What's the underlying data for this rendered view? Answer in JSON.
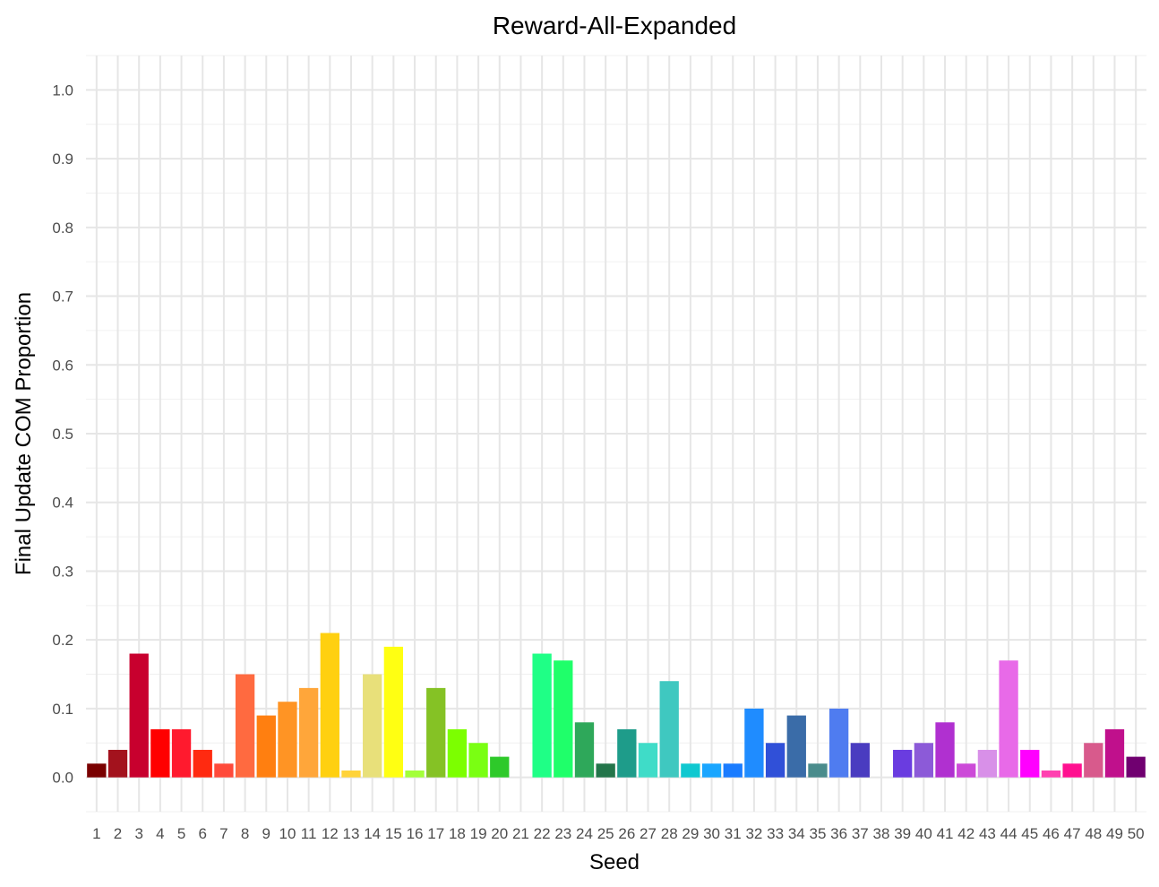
{
  "chart_data": {
    "type": "bar",
    "title": "Reward-All-Expanded",
    "xlabel": "Seed",
    "ylabel": "Final Update COM Proportion",
    "ylim": [
      -0.05,
      1.05
    ],
    "yticks": [
      "0.0",
      "0.1",
      "0.2",
      "0.3",
      "0.4",
      "0.5",
      "0.6",
      "0.7",
      "0.8",
      "0.9",
      "1.0"
    ],
    "grid": true,
    "legend": "none",
    "categories": [
      "1",
      "2",
      "3",
      "4",
      "5",
      "6",
      "7",
      "8",
      "9",
      "10",
      "11",
      "12",
      "13",
      "14",
      "15",
      "16",
      "17",
      "18",
      "19",
      "20",
      "21",
      "22",
      "23",
      "24",
      "25",
      "26",
      "27",
      "28",
      "29",
      "30",
      "31",
      "32",
      "33",
      "34",
      "35",
      "36",
      "37",
      "38",
      "39",
      "40",
      "41",
      "42",
      "43",
      "44",
      "45",
      "46",
      "47",
      "48",
      "49",
      "50"
    ],
    "values": [
      0.02,
      0.04,
      0.18,
      0.07,
      0.07,
      0.04,
      0.02,
      0.15,
      0.09,
      0.11,
      0.13,
      0.21,
      0.01,
      0.15,
      0.19,
      0.01,
      0.13,
      0.07,
      0.05,
      0.03,
      0,
      0.18,
      0.17,
      0.08,
      0.02,
      0.07,
      0.05,
      0.14,
      0.02,
      0.02,
      0.02,
      0.1,
      0.05,
      0.09,
      0.02,
      0.1,
      0.05,
      0,
      0.04,
      0.05,
      0.08,
      0.02,
      0.04,
      0.17,
      0.04,
      0.01,
      0.02,
      0.05,
      0.07,
      0.03
    ],
    "colors": [
      "#7a0000",
      "#a3121d",
      "#c8002e",
      "#ff0000",
      "#ff1a2e",
      "#ff2a10",
      "#ff4a3a",
      "#ff6a40",
      "#ff7f10",
      "#ff9424",
      "#ffa63a",
      "#ffd010",
      "#ffd33a",
      "#e8e07a",
      "#ffff12",
      "#a3ff3a",
      "#85c225",
      "#7cff00",
      "#7aff12",
      "#2ec92a",
      "#1a9c35",
      "#1fff86",
      "#1fff6a",
      "#2ea85a",
      "#23754a",
      "#1e9c8a",
      "#3fdcc8",
      "#3fc8c0",
      "#10c8d0",
      "#1aa6ff",
      "#1a7cff",
      "#1f8cff",
      "#3050d8",
      "#3a6ca8",
      "#4a8c8c",
      "#4f7cf0",
      "#4a3cc0",
      "#6a4ae8",
      "#6a3ce0",
      "#8c5ad8",
      "#b030d0",
      "#cc4ad8",
      "#d890e8",
      "#e86ae8",
      "#ff00ff",
      "#ff40b0",
      "#ff1090",
      "#d85a8c",
      "#c0108c",
      "#700070"
    ]
  }
}
